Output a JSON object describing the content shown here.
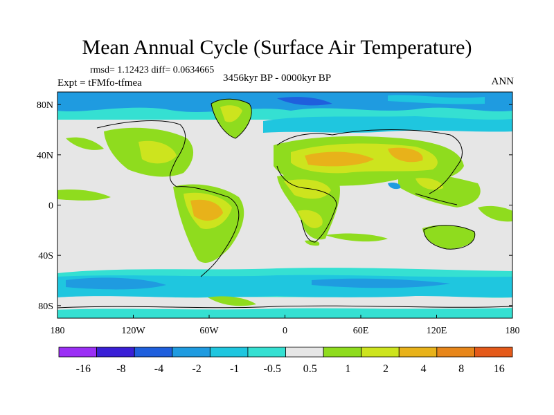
{
  "header": {
    "title": "Mean Annual Cycle (Surface Air Temperature)",
    "stats": "rmsd= 1.12423 diff= 0.0634665",
    "expt": "Expt = tFMfo-tfmea",
    "period": "3456kyr BP - 0000kyr BP",
    "season": "ANN"
  },
  "map": {
    "lat_ticks": [
      "80N",
      "40N",
      "0",
      "40S",
      "80S"
    ],
    "lon_ticks": [
      "180",
      "120W",
      "60W",
      "0",
      "60E",
      "120E",
      "180"
    ]
  },
  "colorbar": {
    "colors": [
      "#9b2ff5",
      "#3a1fd6",
      "#1f5fdd",
      "#1f9be0",
      "#1fc6df",
      "#35e0d2",
      "#e6e6e6",
      "#8fdc1e",
      "#cde41e",
      "#e8b21a",
      "#e7861a",
      "#e45a1a"
    ],
    "labels": [
      "-16",
      "-8",
      "-4",
      "-2",
      "-1",
      "-0.5",
      "0.5",
      "1",
      "2",
      "4",
      "8",
      "16"
    ]
  }
}
